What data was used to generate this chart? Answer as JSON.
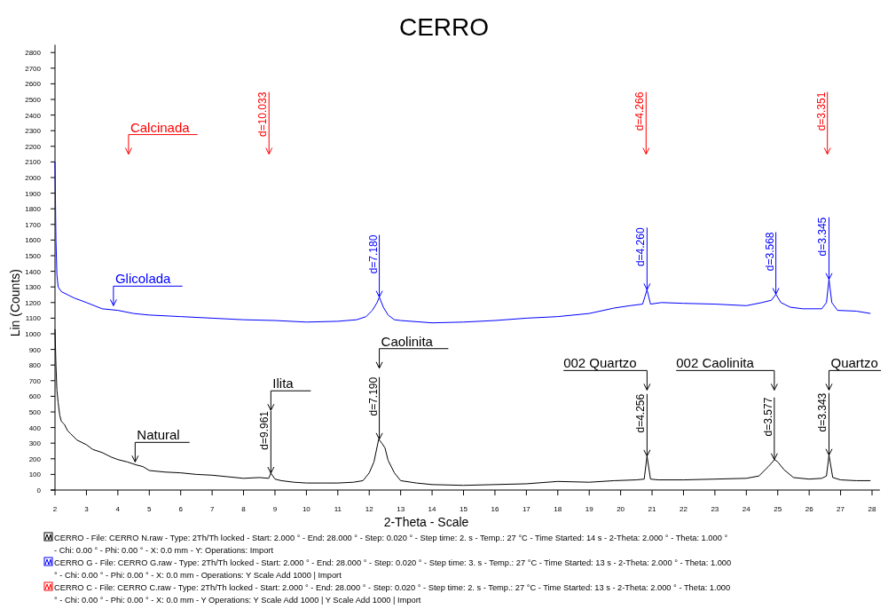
{
  "chart_data": {
    "type": "line",
    "title": "CERRO",
    "xlabel": "2-Theta - Scale",
    "ylabel": "Lin (Counts)",
    "xlim": [
      2,
      28.25
    ],
    "xticks": [
      2,
      3,
      4,
      5,
      6,
      7,
      8,
      9,
      10,
      11,
      12,
      13,
      14,
      15,
      16,
      17,
      18,
      19,
      20,
      21,
      22,
      23,
      24,
      25,
      26,
      27,
      28
    ],
    "ylim": [
      0,
      2850
    ],
    "yticks": [
      0,
      100,
      200,
      300,
      400,
      500,
      600,
      700,
      800,
      900,
      1000,
      1100,
      1200,
      1300,
      1400,
      1500,
      1600,
      1700,
      1800,
      1900,
      2000,
      2100,
      2200,
      2300,
      2400,
      2500,
      2600,
      2700,
      2800
    ],
    "grid": false,
    "legend": "bottom",
    "marker": "none",
    "line_style": "solid",
    "series": [
      {
        "name": "CERRO - File: CERRO N.raw - Type: 2Th/Th locked - Start: 2.000 ° - End: 28.000 ° - Step: 0.020 ° - Step time: 2. s - Temp.: 27 °C - Time Started: 14 s - 2-Theta: 2.000 ° - Theta: 1.000 ° - Chi: 0.00 ° - Phi: 0.00 ° - X: 0.0 mm - Y: Operations: Import",
        "color": "#000000",
        "x": [
          2.0,
          2.03,
          2.06,
          2.1,
          2.15,
          2.2,
          2.3,
          2.4,
          2.5,
          2.7,
          3.0,
          3.2,
          3.5,
          3.8,
          4.0,
          4.3,
          4.6,
          4.8,
          5.0,
          5.5,
          6.0,
          6.5,
          7.0,
          7.5,
          8.0,
          8.5,
          8.8,
          8.87,
          9.0,
          9.2,
          9.6,
          10.0,
          10.5,
          11.0,
          11.5,
          11.8,
          12.0,
          12.15,
          12.3,
          12.4,
          12.5,
          12.6,
          12.8,
          13.0,
          13.5,
          14.0,
          15.0,
          16.0,
          17.0,
          18.0,
          19.0,
          19.8,
          20.5,
          20.75,
          20.84,
          20.95,
          21.2,
          22.0,
          23.0,
          24.0,
          24.4,
          24.7,
          24.9,
          25.0,
          25.2,
          25.5,
          26.0,
          26.4,
          26.55,
          26.63,
          26.75,
          27.0,
          27.5,
          27.95
        ],
        "values": [
          1030,
          800,
          640,
          560,
          480,
          440,
          420,
          380,
          360,
          320,
          290,
          260,
          240,
          210,
          195,
          180,
          160,
          150,
          125,
          115,
          110,
          100,
          95,
          85,
          75,
          80,
          75,
          108,
          70,
          60,
          50,
          45,
          45,
          45,
          50,
          60,
          110,
          180,
          325,
          300,
          270,
          190,
          110,
          60,
          45,
          35,
          30,
          35,
          40,
          55,
          50,
          60,
          65,
          70,
          217,
          70,
          65,
          65,
          70,
          75,
          90,
          150,
          195,
          180,
          130,
          80,
          70,
          75,
          90,
          223,
          80,
          65,
          60,
          60
        ]
      },
      {
        "name": "CERRO G - File: CERRO G.raw - Type: 2Th/Th locked - Start: 2.000 ° - End: 28.000 ° - Step: 0.020 ° - Step time: 3. s - Temp.: 27 °C - Time Started: 13 s - 2-Theta: 2.000 ° - Theta: 1.000 ° - Chi: 0.00 ° - Phi: 0.00 ° - X: 0.0 mm - Operations: Y Scale Add 1000 | Import",
        "color": "#0000ff",
        "x": [
          2.0,
          2.03,
          2.06,
          2.1,
          2.2,
          2.4,
          2.6,
          3.0,
          3.5,
          4.0,
          4.5,
          5.0,
          6.0,
          7.0,
          8.0,
          9.0,
          10.0,
          11.0,
          11.6,
          11.9,
          12.1,
          12.25,
          12.32,
          12.45,
          12.6,
          12.8,
          13.0,
          14.0,
          15.0,
          16.0,
          17.0,
          18.0,
          19.0,
          19.8,
          20.3,
          20.7,
          20.84,
          20.95,
          21.3,
          22.0,
          23.0,
          24.0,
          24.5,
          24.8,
          24.94,
          25.1,
          25.4,
          25.8,
          26.4,
          26.55,
          26.63,
          26.72,
          26.9,
          27.5,
          27.95
        ],
        "values": [
          2100,
          1600,
          1380,
          1300,
          1270,
          1250,
          1230,
          1200,
          1160,
          1150,
          1130,
          1120,
          1110,
          1100,
          1090,
          1085,
          1075,
          1080,
          1090,
          1110,
          1150,
          1200,
          1235,
          1170,
          1120,
          1090,
          1085,
          1070,
          1075,
          1085,
          1100,
          1110,
          1130,
          1165,
          1180,
          1190,
          1282,
          1190,
          1200,
          1195,
          1190,
          1180,
          1200,
          1215,
          1253,
          1200,
          1170,
          1160,
          1160,
          1200,
          1348,
          1200,
          1150,
          1145,
          1130
        ]
      },
      {
        "name": "CERRO C - File: CERRO C.raw - Type: 2Th/Th locked - Start: 2.000 ° - End: 28.000 ° - Step: 0.020 ° - Step time: 2. s - Temp.: 27 °C - Time Started: 13 s - 2-Theta: 2.000 ° - Theta: 1.000 ° - Chi: 0.00 ° - Phi: 0.00 ° - X: 0.0 mm - Y Operations: Y Scale Add 1000 | Y Scale Add 1000 | Import",
        "color": "#ff0000"
      }
    ],
    "annotations": [
      "Calcinada",
      "d=10.033",
      "d=4.266",
      "d=3.351",
      "Glicolada",
      {
        "text": "d=7.180",
        "x": 12.32,
        "y": 1235
      },
      {
        "text": "d=4.260",
        "x": 20.84,
        "y": 1282
      },
      {
        "text": "d=3.568",
        "x": 24.94,
        "y": 1253
      },
      {
        "text": "d=3.345",
        "x": 26.63,
        "y": 1348
      },
      "Natural",
      "Ilita",
      {
        "text": "d=9.961",
        "x": 8.87,
        "y": 108
      },
      "Caolinita",
      {
        "text": "d=7.190",
        "x": 12.32,
        "y": 325
      },
      "002 Quartzo",
      {
        "text": "d=4.256",
        "x": 20.84,
        "y": 217
      },
      "002 Caolinita",
      {
        "text": "d=3.577",
        "x": 24.89,
        "y": 195
      },
      "Quartzo",
      {
        "text": "d=3.343",
        "x": 26.63,
        "y": 223
      }
    ]
  }
}
